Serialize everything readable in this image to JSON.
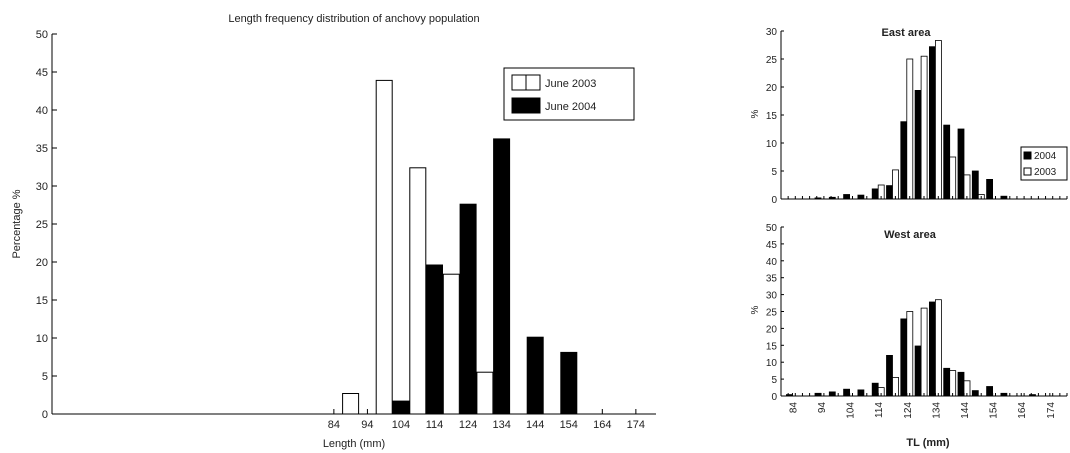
{
  "chart_data": [
    {
      "type": "bar",
      "title": "Length frequency distribution of anchovy population",
      "xlabel": "Length (mm)",
      "ylabel": "Percentage %",
      "ylim": [
        0,
        50
      ],
      "yticks": [
        "0",
        "5",
        "10",
        "15",
        "20",
        "25",
        "30",
        "35",
        "40",
        "45",
        "50"
      ],
      "xticks": [
        "84",
        "94",
        "104",
        "114",
        "124",
        "134",
        "144",
        "154",
        "164",
        "174"
      ],
      "xtick_values": [
        84,
        94,
        104,
        114,
        124,
        134,
        144,
        154,
        164,
        174
      ],
      "grid": false,
      "legend_position": "top-right",
      "series": [
        {
          "name": "June 2003",
          "color": "#ffffff",
          "x": [
            89,
            99,
            109,
            119,
            129
          ],
          "values": [
            2.7,
            43.9,
            32.4,
            18.4,
            5.5
          ]
        },
        {
          "name": "June 2004",
          "color": "#000000",
          "x": [
            104,
            114,
            124,
            134,
            144,
            154
          ],
          "values": [
            1.7,
            19.6,
            27.6,
            36.2,
            10.1,
            8.1
          ]
        }
      ]
    },
    {
      "type": "bar",
      "title": "East area",
      "xlabel": "",
      "ylabel": "%",
      "ylim": [
        0,
        30
      ],
      "yticks": [
        "0",
        "5",
        "10",
        "15",
        "20",
        "25",
        "30"
      ],
      "legend_position": "right",
      "series": [
        {
          "name": "2004",
          "color": "#000000",
          "x": [
            94,
            99,
            104,
            109,
            114,
            119,
            124,
            129,
            134,
            139,
            144,
            149,
            154,
            159
          ],
          "values": [
            0.2,
            0.3,
            0.8,
            0.7,
            1.8,
            2.4,
            13.8,
            19.4,
            27.2,
            13.2,
            12.5,
            5.0,
            3.5,
            0.5
          ]
        },
        {
          "name": "2003",
          "color": "#ffffff",
          "x": [
            114,
            119,
            124,
            129,
            134,
            139,
            144,
            149
          ],
          "values": [
            2.5,
            5.2,
            25.0,
            25.5,
            28.3,
            7.5,
            4.3,
            0.8
          ]
        }
      ]
    },
    {
      "type": "bar",
      "title": "West area",
      "xlabel": "TL (mm)",
      "ylabel": "%",
      "ylim": [
        0,
        50
      ],
      "yticks": [
        "0",
        "5",
        "10",
        "15",
        "20",
        "25",
        "30",
        "35",
        "40",
        "45",
        "50"
      ],
      "xticks": [
        "84",
        "94",
        "104",
        "114",
        "124",
        "134",
        "144",
        "154",
        "164",
        "174"
      ],
      "xtick_values": [
        84,
        94,
        104,
        114,
        124,
        134,
        144,
        154,
        164,
        174
      ],
      "series": [
        {
          "name": "2004",
          "color": "#000000",
          "x": [
            84,
            94,
            99,
            104,
            109,
            114,
            119,
            124,
            129,
            134,
            139,
            144,
            149,
            154,
            159,
            169
          ],
          "values": [
            0.4,
            0.8,
            1.2,
            2.0,
            1.8,
            3.8,
            12.0,
            22.8,
            14.8,
            27.8,
            8.2,
            7.0,
            1.6,
            2.8,
            0.8,
            0.4
          ]
        },
        {
          "name": "2003",
          "color": "#ffffff",
          "x": [
            114,
            119,
            124,
            129,
            134,
            139,
            144
          ],
          "values": [
            2.5,
            5.5,
            25.0,
            26.0,
            28.5,
            7.5,
            4.5
          ]
        }
      ]
    }
  ]
}
